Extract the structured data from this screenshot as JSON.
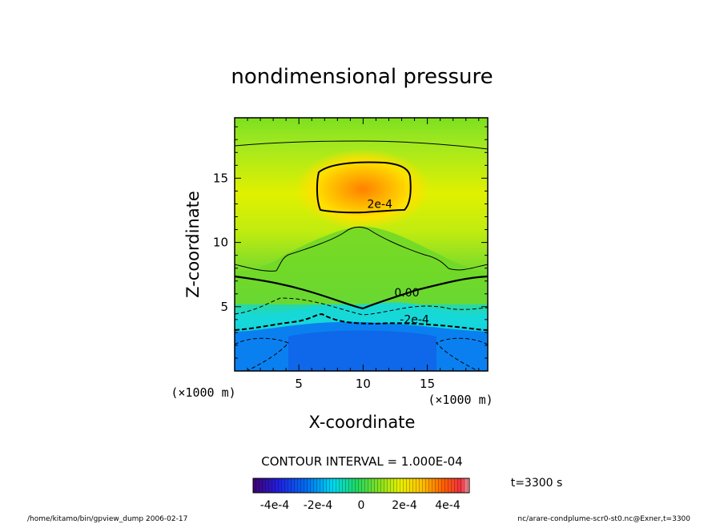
{
  "chart_data": {
    "type": "heatmap",
    "title": "nondimensional pressure",
    "xlabel": "X-coordinate",
    "ylabel": "Z-coordinate",
    "x_unit": "(×1000 m)",
    "z_unit": "(×1000 m)",
    "xlim": [
      0,
      19.7
    ],
    "zlim": [
      0,
      19.7
    ],
    "x_ticks": [
      5,
      10,
      15
    ],
    "z_ticks": [
      5,
      10,
      15
    ],
    "colorbar": {
      "range": [
        -0.0005,
        0.0005
      ],
      "tick_labels": [
        "-4e-4",
        "-2e-4",
        "0",
        "2e-4",
        "4e-4"
      ],
      "tick_values": [
        -0.0004,
        -0.0002,
        0,
        0.0002,
        0.0004
      ]
    },
    "contour_interval_text": "CONTOUR INTERVAL = 1.000E-04",
    "contour_labels": [
      {
        "text": "2e-4",
        "x": 11.3,
        "z": 12.7
      },
      {
        "text": "0.00",
        "x": 13.4,
        "z": 5.8
      },
      {
        "text": "-2e-4",
        "x": 14.0,
        "z": 3.7
      }
    ],
    "field_features": [
      {
        "feature": "high pressure cell",
        "x": 10.0,
        "z": 14.5,
        "value": 0.00028
      },
      {
        "feature": "low pressure layer",
        "z_range": [
          0,
          3.5
        ],
        "value": -0.00035
      }
    ],
    "time_label": "t=3300 s",
    "footer_left": "/home/kitamo/bin/gpview_dump  2006-02-17",
    "footer_right": "nc/arare-condplume-scr0-st0.nc@Exner,t=3300"
  }
}
